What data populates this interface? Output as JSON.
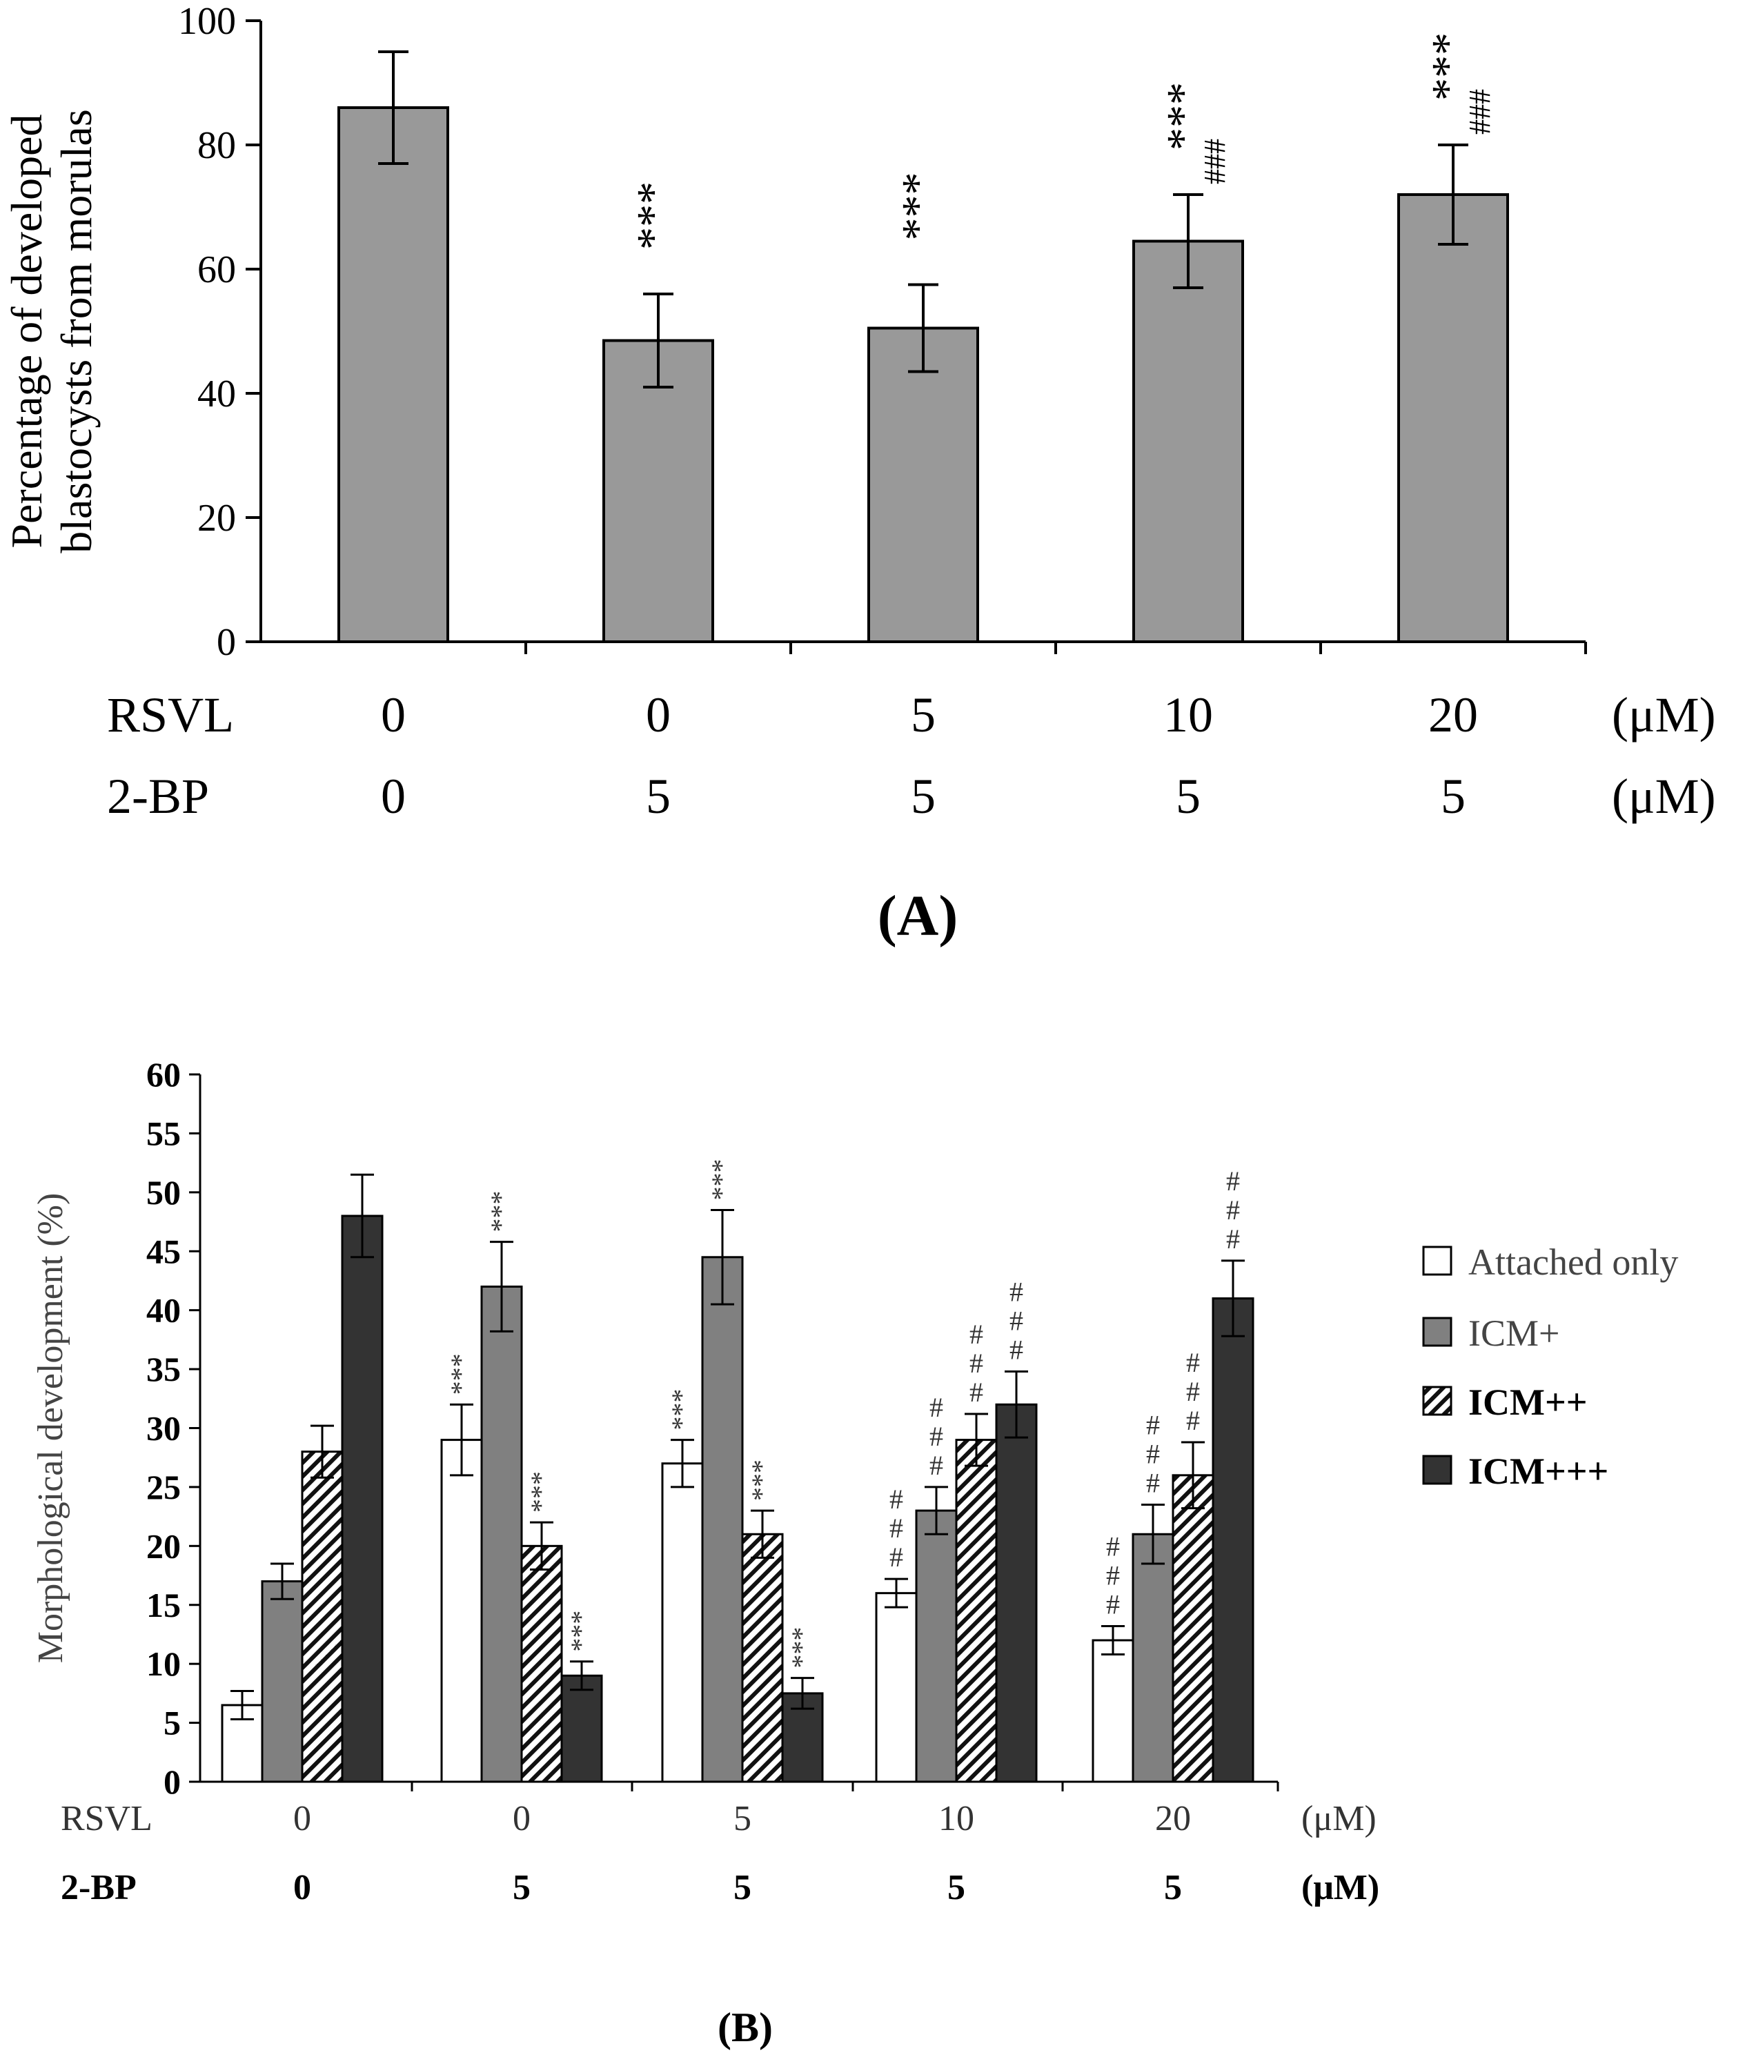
{
  "chart_data": [
    {
      "type": "bar",
      "panel_label": "(A)",
      "ylabel_lines": [
        "Percentage of developed",
        "blastocysts from morulas"
      ],
      "ylim": [
        0,
        100
      ],
      "yticks": [
        "0",
        "20",
        "40",
        "60",
        "80",
        "100"
      ],
      "values": [
        86,
        48.5,
        50.5,
        64.5,
        72
      ],
      "errors": [
        9,
        7.5,
        7,
        7.5,
        8
      ],
      "bar_color": "#999999",
      "annotations": [
        {
          "stars": "",
          "hashes": ""
        },
        {
          "stars": "***",
          "hashes": ""
        },
        {
          "stars": "***",
          "hashes": ""
        },
        {
          "stars": "***",
          "hashes": "###"
        },
        {
          "stars": "***",
          "hashes": "###"
        }
      ],
      "conditions": [
        {
          "label": "RSVL",
          "values": [
            "0",
            "0",
            "5",
            "10",
            "20"
          ],
          "unit": "(μM)"
        },
        {
          "label": "2-BP",
          "values": [
            "0",
            "5",
            "5",
            "5",
            "5"
          ],
          "unit": "(μM)"
        }
      ]
    },
    {
      "type": "bar",
      "panel_label": "(B)",
      "ylabel": "Morphological development (%)",
      "ylim": [
        0,
        60
      ],
      "yticks": [
        "0",
        "5",
        "10",
        "15",
        "20",
        "25",
        "30",
        "35",
        "40",
        "45",
        "50",
        "55",
        "60"
      ],
      "series": [
        {
          "name": "Attached only",
          "style": "white",
          "values": [
            6.5,
            29,
            27,
            16,
            12
          ],
          "errors": [
            1.2,
            3,
            2,
            1.2,
            1.2
          ],
          "annotations": [
            {
              "stars": "",
              "hashes": ""
            },
            {
              "stars": "***",
              "hashes": ""
            },
            {
              "stars": "***",
              "hashes": ""
            },
            {
              "stars": "",
              "hashes": "###"
            },
            {
              "stars": "",
              "hashes": "###"
            }
          ]
        },
        {
          "name": "ICM+",
          "style": "gray",
          "values": [
            17,
            42,
            44.5,
            23,
            21
          ],
          "errors": [
            1.5,
            3.8,
            4,
            2,
            2.5
          ],
          "annotations": [
            {
              "stars": "",
              "hashes": ""
            },
            {
              "stars": "***",
              "hashes": ""
            },
            {
              "stars": "***",
              "hashes": ""
            },
            {
              "stars": "",
              "hashes": "###"
            },
            {
              "stars": "",
              "hashes": "###"
            }
          ]
        },
        {
          "name": "ICM++",
          "style": "hatch",
          "values": [
            28,
            20,
            21,
            29,
            26
          ],
          "errors": [
            2.2,
            2,
            2,
            2.2,
            2.8
          ],
          "annotations": [
            {
              "stars": "",
              "hashes": ""
            },
            {
              "stars": "***",
              "hashes": ""
            },
            {
              "stars": "***",
              "hashes": ""
            },
            {
              "stars": "",
              "hashes": "###"
            },
            {
              "stars": "",
              "hashes": "###"
            }
          ]
        },
        {
          "name": "ICM+++",
          "style": "dark",
          "values": [
            48,
            9,
            7.5,
            32,
            41
          ],
          "errors": [
            3.5,
            1.2,
            1.3,
            2.8,
            3.2
          ],
          "annotations": [
            {
              "stars": "",
              "hashes": ""
            },
            {
              "stars": "***",
              "hashes": ""
            },
            {
              "stars": "***",
              "hashes": ""
            },
            {
              "stars": "",
              "hashes": "###"
            },
            {
              "stars": "",
              "hashes": "###"
            }
          ]
        }
      ],
      "conditions": [
        {
          "label": "RSVL",
          "values": [
            "0",
            "0",
            "5",
            "10",
            "20"
          ],
          "unit": "(μM)"
        },
        {
          "label": "2-BP",
          "values": [
            "0",
            "5",
            "5",
            "5",
            "5"
          ],
          "unit": "(μM)"
        }
      ],
      "legend_position": "right"
    }
  ]
}
